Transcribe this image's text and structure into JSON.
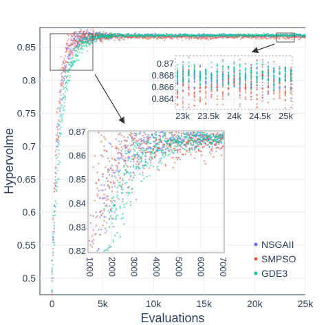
{
  "chart_data": {
    "type": "scatter",
    "title": "",
    "xlabel": "Evaluations",
    "ylabel": "Hypervolme",
    "xlim": [
      -1200,
      25000
    ],
    "ylim": [
      0.475,
      0.88
    ],
    "x_ticks": [
      0,
      5000,
      10000,
      15000,
      20000,
      25000
    ],
    "x_tick_labels": [
      "0",
      "5k",
      "10k",
      "15k",
      "20k",
      "25k"
    ],
    "y_ticks": [
      0.5,
      0.55,
      0.6,
      0.65,
      0.7,
      0.75,
      0.8,
      0.85
    ],
    "y_tick_labels": [
      "0.5",
      "0.55",
      "0.6",
      "0.65",
      "0.7",
      "0.75",
      "0.8",
      "0.85"
    ],
    "grid": true,
    "legend_position": "bottom-right",
    "series": [
      {
        "name": "NSGAII",
        "color": "#636efa",
        "start": 0.49,
        "final": 0.8675,
        "rate": 620,
        "band": 0.0025
      },
      {
        "name": "SMPSO",
        "color": "#ef553b",
        "start": 0.48,
        "final": 0.8658,
        "rate": 520,
        "band": 0.0035
      },
      {
        "name": "GDE3",
        "color": "#00cc96",
        "start": 0.5,
        "final": 0.8682,
        "rate": 900,
        "band": 0.002
      }
    ],
    "zoom_insets": [
      {
        "xlim": [
          22900,
          25100
        ],
        "ylim": [
          0.8625,
          0.8712
        ],
        "x_ticks": [
          23000,
          23500,
          24000,
          24500,
          25000
        ],
        "x_tick_labels": [
          "23k",
          "23.5k",
          "24k",
          "24.5k",
          "25k"
        ],
        "y_ticks": [
          0.864,
          0.866,
          0.868,
          0.87
        ],
        "y_tick_labels": [
          "0.864",
          "0.866",
          "0.868",
          "0.87"
        ]
      },
      {
        "xlim": [
          1000,
          7000
        ],
        "ylim": [
          0.82,
          0.87
        ],
        "x_ticks": [
          1000,
          2000,
          3000,
          4000,
          5000,
          6000,
          7000
        ],
        "x_tick_labels": [
          "1000",
          "2000",
          "3000",
          "4000",
          "5000",
          "6000",
          "7000"
        ],
        "y_ticks": [
          0.82,
          0.83,
          0.84,
          0.85,
          0.86,
          0.87
        ],
        "y_tick_labels": [
          "0.82",
          "0.83",
          "0.84",
          "0.85",
          "0.86",
          "0.87"
        ]
      }
    ]
  }
}
